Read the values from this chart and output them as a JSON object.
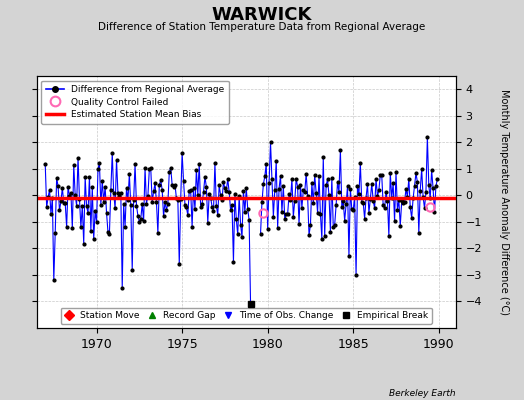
{
  "title": "WARWICK",
  "subtitle": "Difference of Station Temperature Data from Regional Average",
  "ylabel_right": "Monthly Temperature Anomaly Difference (°C)",
  "xlim": [
    1966.5,
    1991.0
  ],
  "ylim": [
    -5,
    4.5
  ],
  "yticks": [
    -4,
    -3,
    -2,
    -1,
    0,
    1,
    2,
    3,
    4
  ],
  "xticks": [
    1970,
    1975,
    1980,
    1985,
    1990
  ],
  "bias_value": -0.1,
  "background_color": "#d4d4d4",
  "plot_bg_color": "#ffffff",
  "line_color": "#0000ff",
  "bias_color": "#ff0000",
  "marker_color": "#000000",
  "qc_color": "#ff69b4",
  "grid_color": "#bbbbbb",
  "years_start": 1967,
  "years_end": 1990,
  "empirical_break_x": 1979.0,
  "empirical_break_y": -4.1,
  "qc_point1_x": 1979.75,
  "qc_point1_y": -0.65,
  "qc_point2_x": 1989.5,
  "qc_point2_y": -0.45
}
